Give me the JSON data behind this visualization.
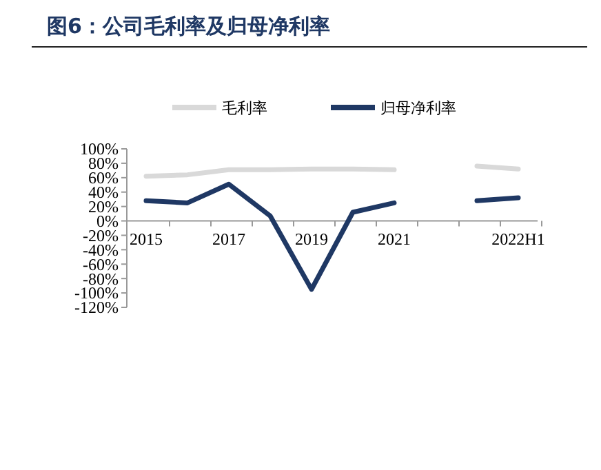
{
  "chart_data": {
    "type": "line",
    "title": "图6：公司毛利率及归母净利率",
    "categories": [
      "2015",
      null,
      "2017",
      null,
      "2019",
      null,
      "2021",
      null,
      null,
      "2022H1"
    ],
    "series": [
      {
        "name": "毛利率",
        "color": "#d9d9d9",
        "values": [
          62,
          64,
          71,
          71,
          72,
          72,
          71,
          null,
          76,
          72
        ]
      },
      {
        "name": "归母净利率",
        "color": "#1f3864",
        "values": [
          28,
          25,
          51,
          7,
          -95,
          12,
          25,
          null,
          28,
          32
        ]
      }
    ],
    "ylim": [
      -120,
      100
    ],
    "yticks": [
      {
        "value": 100,
        "label": "100%"
      },
      {
        "value": 80,
        "label": "80%"
      },
      {
        "value": 60,
        "label": "60%"
      },
      {
        "value": 40,
        "label": "40%"
      },
      {
        "value": 20,
        "label": "20%"
      },
      {
        "value": 0,
        "label": "0%"
      },
      {
        "value": -20,
        "label": "-20%"
      },
      {
        "value": -40,
        "label": "-40%"
      },
      {
        "value": -60,
        "label": "-60%"
      },
      {
        "value": -80,
        "label": "-80%"
      },
      {
        "value": -100,
        "label": "-100%"
      },
      {
        "value": -120,
        "label": "-120%"
      }
    ],
    "legend": "top",
    "grid": false,
    "marker": "none",
    "line_style": "solid"
  }
}
